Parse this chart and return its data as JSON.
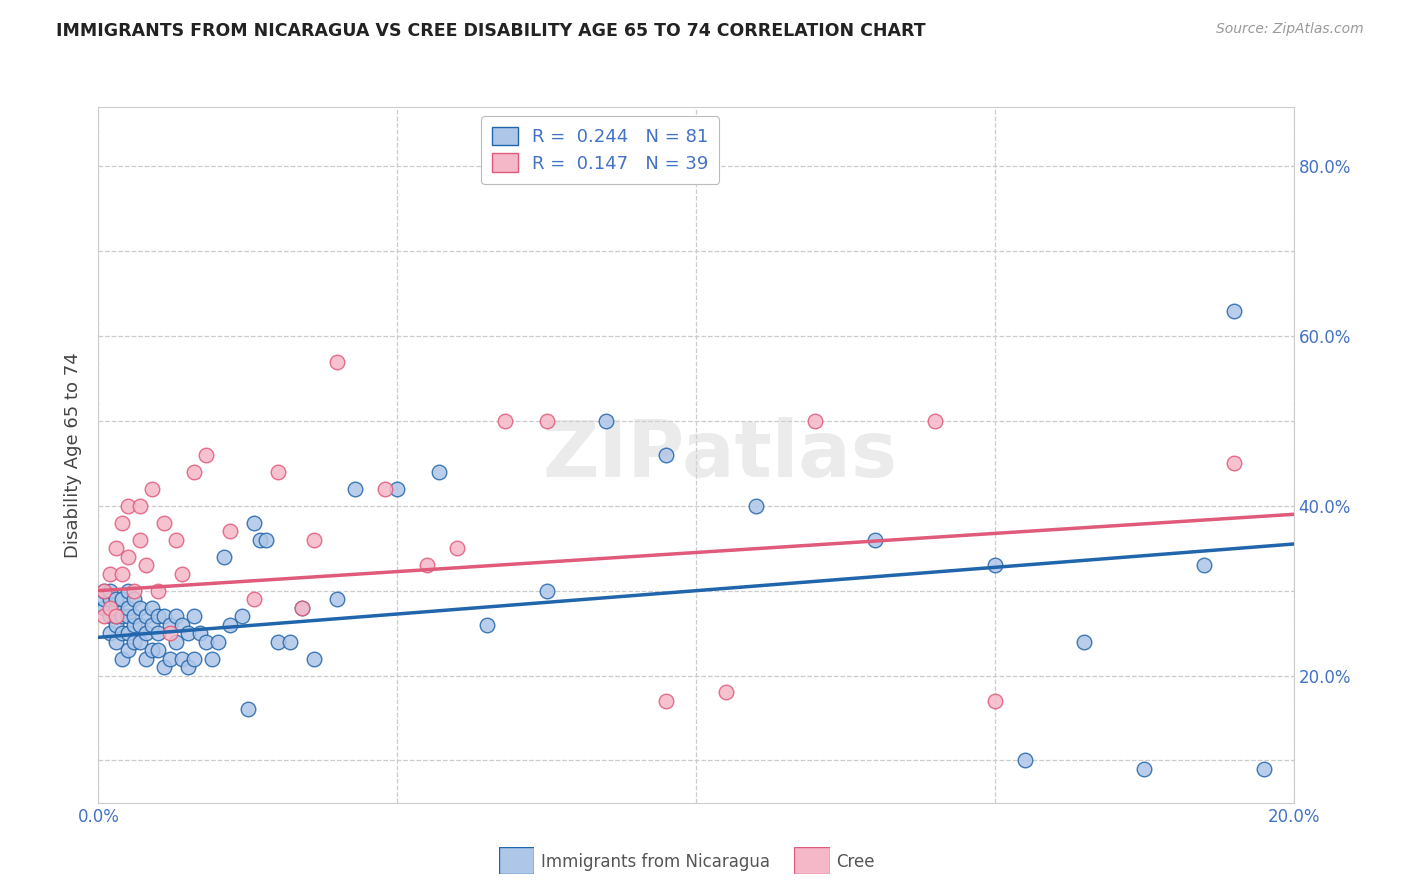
{
  "title": "IMMIGRANTS FROM NICARAGUA VS CREE DISABILITY AGE 65 TO 74 CORRELATION CHART",
  "source": "Source: ZipAtlas.com",
  "ylabel": "Disability Age 65 to 74",
  "legend_label1": "Immigrants from Nicaragua",
  "legend_label2": "Cree",
  "r1": 0.244,
  "n1": 81,
  "r2": 0.147,
  "n2": 39,
  "xlim": [
    0.0,
    0.2
  ],
  "ylim": [
    0.05,
    0.87
  ],
  "color_blue": "#aec6e8",
  "color_pink": "#f5b8c8",
  "line_blue": "#2166ac",
  "line_pink": "#e05a7a",
  "title_color": "#222222",
  "source_color": "#999999",
  "axis_color": "#4472c4",
  "tick_color": "#4472c4",
  "blue_x": [
    0.001,
    0.001,
    0.001,
    0.002,
    0.002,
    0.002,
    0.002,
    0.003,
    0.003,
    0.003,
    0.003,
    0.003,
    0.004,
    0.004,
    0.004,
    0.004,
    0.005,
    0.005,
    0.005,
    0.005,
    0.005,
    0.006,
    0.006,
    0.006,
    0.006,
    0.007,
    0.007,
    0.007,
    0.008,
    0.008,
    0.008,
    0.009,
    0.009,
    0.009,
    0.01,
    0.01,
    0.01,
    0.011,
    0.011,
    0.012,
    0.012,
    0.013,
    0.013,
    0.014,
    0.014,
    0.015,
    0.015,
    0.016,
    0.016,
    0.017,
    0.018,
    0.019,
    0.02,
    0.021,
    0.022,
    0.024,
    0.025,
    0.026,
    0.027,
    0.028,
    0.03,
    0.032,
    0.034,
    0.036,
    0.04,
    0.043,
    0.05,
    0.057,
    0.065,
    0.075,
    0.085,
    0.095,
    0.11,
    0.13,
    0.15,
    0.155,
    0.165,
    0.175,
    0.185,
    0.19,
    0.195
  ],
  "blue_y": [
    0.28,
    0.29,
    0.3,
    0.25,
    0.27,
    0.29,
    0.3,
    0.24,
    0.26,
    0.27,
    0.28,
    0.29,
    0.22,
    0.25,
    0.27,
    0.29,
    0.23,
    0.25,
    0.27,
    0.28,
    0.3,
    0.24,
    0.26,
    0.27,
    0.29,
    0.24,
    0.26,
    0.28,
    0.22,
    0.25,
    0.27,
    0.23,
    0.26,
    0.28,
    0.23,
    0.25,
    0.27,
    0.21,
    0.27,
    0.22,
    0.26,
    0.24,
    0.27,
    0.22,
    0.26,
    0.21,
    0.25,
    0.22,
    0.27,
    0.25,
    0.24,
    0.22,
    0.24,
    0.34,
    0.26,
    0.27,
    0.16,
    0.38,
    0.36,
    0.36,
    0.24,
    0.24,
    0.28,
    0.22,
    0.29,
    0.42,
    0.42,
    0.44,
    0.26,
    0.3,
    0.5,
    0.46,
    0.4,
    0.36,
    0.33,
    0.1,
    0.24,
    0.09,
    0.33,
    0.63,
    0.09
  ],
  "pink_x": [
    0.001,
    0.001,
    0.002,
    0.002,
    0.003,
    0.003,
    0.004,
    0.004,
    0.005,
    0.005,
    0.006,
    0.007,
    0.007,
    0.008,
    0.009,
    0.01,
    0.011,
    0.012,
    0.013,
    0.014,
    0.016,
    0.018,
    0.022,
    0.026,
    0.03,
    0.034,
    0.036,
    0.04,
    0.048,
    0.055,
    0.06,
    0.068,
    0.075,
    0.095,
    0.105,
    0.12,
    0.14,
    0.15,
    0.19
  ],
  "pink_y": [
    0.27,
    0.3,
    0.28,
    0.32,
    0.27,
    0.35,
    0.32,
    0.38,
    0.34,
    0.4,
    0.3,
    0.36,
    0.4,
    0.33,
    0.42,
    0.3,
    0.38,
    0.25,
    0.36,
    0.32,
    0.44,
    0.46,
    0.37,
    0.29,
    0.44,
    0.28,
    0.36,
    0.57,
    0.42,
    0.33,
    0.35,
    0.5,
    0.5,
    0.17,
    0.18,
    0.5,
    0.5,
    0.17,
    0.45
  ],
  "blue_line_x0": 0.0,
  "blue_line_x1": 0.2,
  "blue_line_y0": 0.245,
  "blue_line_y1": 0.355,
  "pink_line_x0": 0.0,
  "pink_line_x1": 0.2,
  "pink_line_y0": 0.3,
  "pink_line_y1": 0.39
}
